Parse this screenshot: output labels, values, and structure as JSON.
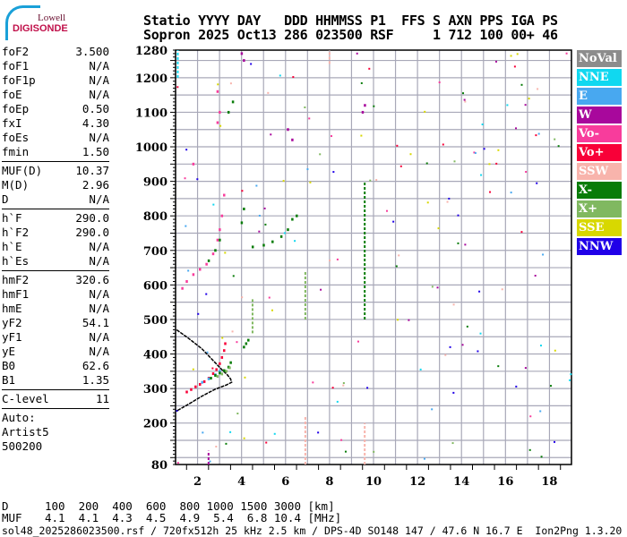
{
  "logo": {
    "line1": "Lowell",
    "line2": "DIGISONDE"
  },
  "header": {
    "line1": "Statio YYYY DAY   DDD HHMMSS P1  FFS S AXN PPS IGA PS",
    "line2": "Sopron 2025 Oct13 286 023500 RSF     1 712 100 00+ 46"
  },
  "params": [
    [
      {
        "k": "foF2",
        "v": "3.500"
      },
      {
        "k": "foF1",
        "v": "N/A"
      },
      {
        "k": "foF1p",
        "v": "N/A"
      },
      {
        "k": "foE",
        "v": "N/A"
      },
      {
        "k": "foEp",
        "v": "0.50"
      },
      {
        "k": "fxI",
        "v": "4.30"
      },
      {
        "k": "foEs",
        "v": "N/A"
      },
      {
        "k": "fmin",
        "v": "1.50"
      }
    ],
    [
      {
        "k": "MUF(D)",
        "v": "10.37"
      },
      {
        "k": "M(D)",
        "v": "2.96"
      },
      {
        "k": "D",
        "v": "N/A"
      }
    ],
    [
      {
        "k": "h`F",
        "v": "290.0"
      },
      {
        "k": "h`F2",
        "v": "290.0"
      },
      {
        "k": "h`E",
        "v": "N/A"
      },
      {
        "k": "h`Es",
        "v": "N/A"
      }
    ],
    [
      {
        "k": "hmF2",
        "v": "320.6"
      },
      {
        "k": "hmF1",
        "v": "N/A"
      },
      {
        "k": "hmE",
        "v": "N/A"
      },
      {
        "k": "yF2",
        "v": "54.1"
      },
      {
        "k": "yF1",
        "v": "N/A"
      },
      {
        "k": "yE",
        "v": "N/A"
      },
      {
        "k": "B0",
        "v": "62.6"
      },
      {
        "k": "B1",
        "v": "1.35"
      }
    ],
    [
      {
        "k": "C-level",
        "v": "11"
      }
    ]
  ],
  "auto": [
    "Auto:",
    "Artist5",
    "500200"
  ],
  "legend": [
    {
      "label": "NoVal",
      "color": "#8c8c8c"
    },
    {
      "label": "NNE",
      "color": "#10d8f0"
    },
    {
      "label": "E",
      "color": "#48a8f0"
    },
    {
      "label": "W",
      "color": "#a8089c"
    },
    {
      "label": "Vo-",
      "color": "#f83c9c"
    },
    {
      "label": "Vo+",
      "color": "#f80038"
    },
    {
      "label": "SSW",
      "color": "#f8b4ac"
    },
    {
      "label": "X-",
      "color": "#087c08"
    },
    {
      "label": "X+",
      "color": "#80b860"
    },
    {
      "label": "SSE",
      "color": "#d8d800"
    },
    {
      "label": "NNW",
      "color": "#2000e8"
    }
  ],
  "muf_table": {
    "d_label": "D",
    "d_values": "100  200  400  600  800 1000 1500 3000 [km]",
    "muf_label": "MUF",
    "muf_values": "4.1  4.1  4.3  4.5  4.9  5.4  6.8 10.4 [MHz]"
  },
  "footer": "sol48_2025286023500.rsf / 720fx512h 25 kHz 2.5 km / DPS-4D SO148 147 / 47.6 N 16.7 E  Ion2Png 1.3.20",
  "chart_data": {
    "type": "scatter",
    "xlim": [
      1,
      19
    ],
    "ylim": [
      80,
      1280
    ],
    "x_ticks": [
      2,
      4,
      6,
      8,
      10,
      12,
      14,
      16,
      18
    ],
    "y_ticks": [
      80,
      200,
      300,
      400,
      500,
      600,
      700,
      800,
      900,
      1000,
      1100,
      1200,
      1280
    ],
    "grid": true,
    "series": [
      {
        "color": "#f80038",
        "points": [
          [
            1.5,
            290
          ],
          [
            1.7,
            297
          ],
          [
            1.9,
            305
          ],
          [
            2.1,
            312
          ],
          [
            2.3,
            320
          ],
          [
            2.5,
            330
          ],
          [
            2.7,
            343
          ],
          [
            2.85,
            355
          ],
          [
            3.0,
            372
          ],
          [
            3.1,
            390
          ],
          [
            3.2,
            410
          ],
          [
            3.25,
            430
          ]
        ]
      },
      {
        "color": "#48a8f0",
        "points": [
          [
            2.2,
            318
          ],
          [
            2.5,
            328
          ],
          [
            2.8,
            340
          ],
          [
            3.0,
            350
          ]
        ]
      },
      {
        "color": "#087c08",
        "points": [
          [
            2.6,
            330
          ],
          [
            2.8,
            338
          ],
          [
            3.0,
            345
          ],
          [
            3.2,
            352
          ],
          [
            3.4,
            362
          ],
          [
            3.5,
            375
          ],
          [
            4.1,
            420
          ],
          [
            4.2,
            430
          ],
          [
            4.3,
            440
          ]
        ]
      },
      {
        "color": "#80b860",
        "points": [
          [
            2.9,
            335
          ],
          [
            3.1,
            342
          ],
          [
            3.3,
            350
          ],
          [
            3.45,
            360
          ]
        ]
      },
      {
        "color": "#f83c9c",
        "points": [
          [
            1.3,
            590
          ],
          [
            1.5,
            610
          ],
          [
            1.8,
            630
          ],
          [
            2.1,
            645
          ],
          [
            2.4,
            660
          ],
          [
            2.7,
            690
          ],
          [
            2.9,
            730
          ],
          [
            3.0,
            760
          ],
          [
            3.1,
            800
          ],
          [
            3.2,
            860
          ],
          [
            2.9,
            1070
          ],
          [
            3.0,
            1100
          ],
          [
            2.9,
            1160
          ],
          [
            1.8,
            950
          ]
        ]
      },
      {
        "color": "#087c08",
        "points": [
          [
            2.5,
            670
          ],
          [
            2.8,
            700
          ],
          [
            3.0,
            730
          ],
          [
            4.0,
            780
          ],
          [
            4.1,
            820
          ],
          [
            4.5,
            710
          ],
          [
            5.0,
            715
          ],
          [
            5.4,
            725
          ],
          [
            5.8,
            740
          ],
          [
            6.1,
            760
          ],
          [
            6.3,
            790
          ],
          [
            6.5,
            800
          ],
          [
            3.4,
            1100
          ],
          [
            3.6,
            1130
          ]
        ]
      },
      {
        "color": "#a8089c",
        "points": [
          [
            4.0,
            1270
          ],
          [
            4.1,
            1250
          ],
          [
            6.1,
            1050
          ],
          [
            6.3,
            1020
          ],
          [
            9.5,
            1100
          ],
          [
            9.6,
            1120
          ]
        ]
      }
    ],
    "profile_line": {
      "color": "#000000",
      "points": [
        [
          1.05,
          470
        ],
        [
          1.6,
          445
        ],
        [
          2.2,
          415
        ],
        [
          2.8,
          375
        ],
        [
          3.1,
          355
        ],
        [
          3.35,
          340
        ],
        [
          3.5,
          328
        ],
        [
          3.55,
          318
        ],
        [
          3.3,
          310
        ],
        [
          2.8,
          298
        ],
        [
          2.2,
          278
        ],
        [
          1.6,
          255
        ],
        [
          1.05,
          235
        ]
      ]
    }
  }
}
